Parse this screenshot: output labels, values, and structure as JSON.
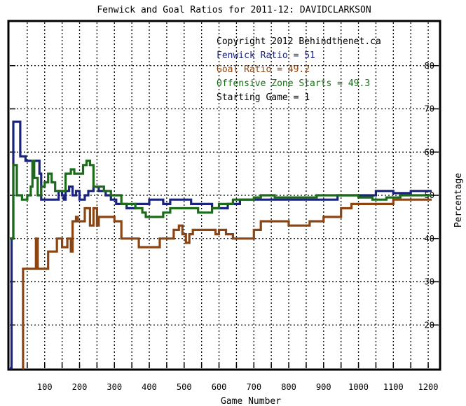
{
  "chart_data": {
    "type": "line",
    "title": "Fenwick and Goal Ratios for 2011-12: DAVIDCLARKSON",
    "xlabel": "Game Number",
    "ylabel": "Percentage",
    "xlim": [
      0,
      1230
    ],
    "ylim": [
      10,
      90
    ],
    "x_ticks": [
      100,
      200,
      300,
      400,
      500,
      600,
      700,
      800,
      900,
      1000,
      1100,
      1200
    ],
    "y_ticks": [
      20,
      30,
      40,
      50,
      60,
      70,
      80
    ],
    "grid": true,
    "annotations": [
      {
        "text": "Copyright 2012 Behindthenet.ca",
        "color": "#000000"
      },
      {
        "text": "Fenwick Ratio = 51",
        "color": "#1a237e"
      },
      {
        "text": "Goal Ratio = 49.2",
        "color": "#8b4513"
      },
      {
        "text": "Offensive Zone Starts = 49.3",
        "color": "#1b6b1b"
      },
      {
        "text": "Starting Game = 1",
        "color": "#000000"
      }
    ],
    "series": [
      {
        "name": "Fenwick Ratio",
        "color": "#1a237e",
        "points": [
          [
            0,
            10
          ],
          [
            5,
            40
          ],
          [
            10,
            67
          ],
          [
            30,
            67
          ],
          [
            30,
            59
          ],
          [
            45,
            58
          ],
          [
            75,
            58
          ],
          [
            85,
            55
          ],
          [
            90,
            49
          ],
          [
            130,
            49
          ],
          [
            140,
            51
          ],
          [
            150,
            50
          ],
          [
            155,
            49
          ],
          [
            160,
            51
          ],
          [
            170,
            52
          ],
          [
            180,
            50
          ],
          [
            190,
            51
          ],
          [
            200,
            49
          ],
          [
            215,
            50
          ],
          [
            225,
            51
          ],
          [
            240,
            52
          ],
          [
            255,
            51
          ],
          [
            275,
            50
          ],
          [
            290,
            49
          ],
          [
            305,
            48
          ],
          [
            320,
            48
          ],
          [
            335,
            47
          ],
          [
            360,
            48
          ],
          [
            385,
            48
          ],
          [
            400,
            49
          ],
          [
            440,
            48
          ],
          [
            460,
            49
          ],
          [
            490,
            49
          ],
          [
            520,
            48
          ],
          [
            550,
            48
          ],
          [
            580,
            47
          ],
          [
            600,
            47
          ],
          [
            625,
            48
          ],
          [
            660,
            49
          ],
          [
            700,
            49
          ],
          [
            740,
            49
          ],
          [
            780,
            49
          ],
          [
            820,
            49
          ],
          [
            860,
            49
          ],
          [
            900,
            49
          ],
          [
            940,
            50
          ],
          [
            980,
            50
          ],
          [
            1020,
            50
          ],
          [
            1050,
            51
          ],
          [
            1100,
            50.5
          ],
          [
            1150,
            51
          ],
          [
            1210,
            51
          ]
        ]
      },
      {
        "name": "Goal Ratio",
        "color": "#8b4513",
        "points": [
          [
            35,
            10
          ],
          [
            38,
            33
          ],
          [
            70,
            33
          ],
          [
            75,
            40
          ],
          [
            80,
            33
          ],
          [
            100,
            33
          ],
          [
            110,
            37
          ],
          [
            130,
            37
          ],
          [
            135,
            40
          ],
          [
            150,
            38
          ],
          [
            165,
            40
          ],
          [
            175,
            37
          ],
          [
            180,
            44
          ],
          [
            190,
            45
          ],
          [
            195,
            44
          ],
          [
            215,
            47
          ],
          [
            220,
            47
          ],
          [
            230,
            43
          ],
          [
            240,
            47
          ],
          [
            250,
            43
          ],
          [
            255,
            45
          ],
          [
            290,
            45
          ],
          [
            300,
            44
          ],
          [
            320,
            40
          ],
          [
            360,
            40
          ],
          [
            370,
            38
          ],
          [
            400,
            38
          ],
          [
            420,
            38
          ],
          [
            430,
            40
          ],
          [
            460,
            40
          ],
          [
            470,
            42
          ],
          [
            485,
            43
          ],
          [
            495,
            41
          ],
          [
            505,
            39
          ],
          [
            515,
            41
          ],
          [
            525,
            42
          ],
          [
            540,
            42
          ],
          [
            560,
            42
          ],
          [
            590,
            41
          ],
          [
            600,
            42
          ],
          [
            620,
            41
          ],
          [
            640,
            40
          ],
          [
            660,
            40
          ],
          [
            680,
            40
          ],
          [
            700,
            42
          ],
          [
            720,
            44
          ],
          [
            750,
            44
          ],
          [
            780,
            44
          ],
          [
            800,
            43
          ],
          [
            840,
            43
          ],
          [
            860,
            44
          ],
          [
            880,
            44
          ],
          [
            900,
            45
          ],
          [
            920,
            45
          ],
          [
            950,
            47
          ],
          [
            980,
            48
          ],
          [
            1020,
            48
          ],
          [
            1060,
            48
          ],
          [
            1100,
            49
          ],
          [
            1140,
            49
          ],
          [
            1180,
            49
          ],
          [
            1210,
            49
          ]
        ]
      },
      {
        "name": "Offensive Zone Starts",
        "color": "#1b6b1b",
        "points": [
          [
            0,
            40
          ],
          [
            5,
            40
          ],
          [
            10,
            57
          ],
          [
            15,
            57
          ],
          [
            20,
            50
          ],
          [
            30,
            50
          ],
          [
            35,
            49
          ],
          [
            50,
            50
          ],
          [
            60,
            52
          ],
          [
            65,
            58
          ],
          [
            70,
            54
          ],
          [
            80,
            50
          ],
          [
            90,
            52
          ],
          [
            100,
            53
          ],
          [
            110,
            55
          ],
          [
            120,
            53
          ],
          [
            130,
            51
          ],
          [
            150,
            51
          ],
          [
            160,
            55
          ],
          [
            175,
            56
          ],
          [
            185,
            55
          ],
          [
            190,
            55
          ],
          [
            200,
            55
          ],
          [
            210,
            57
          ],
          [
            220,
            58
          ],
          [
            230,
            57
          ],
          [
            240,
            52
          ],
          [
            250,
            52
          ],
          [
            270,
            51
          ],
          [
            290,
            50
          ],
          [
            300,
            50
          ],
          [
            320,
            48
          ],
          [
            340,
            48
          ],
          [
            360,
            47
          ],
          [
            380,
            46
          ],
          [
            390,
            45
          ],
          [
            400,
            45
          ],
          [
            420,
            45
          ],
          [
            440,
            46
          ],
          [
            460,
            47
          ],
          [
            480,
            47
          ],
          [
            500,
            47
          ],
          [
            520,
            47
          ],
          [
            540,
            46
          ],
          [
            560,
            46
          ],
          [
            580,
            47
          ],
          [
            600,
            48
          ],
          [
            620,
            48
          ],
          [
            640,
            49
          ],
          [
            680,
            49
          ],
          [
            700,
            49.5
          ],
          [
            720,
            50
          ],
          [
            760,
            49.5
          ],
          [
            800,
            49.5
          ],
          [
            840,
            49.5
          ],
          [
            880,
            50
          ],
          [
            920,
            50
          ],
          [
            960,
            50
          ],
          [
            1000,
            49.5
          ],
          [
            1040,
            49
          ],
          [
            1080,
            49.5
          ],
          [
            1120,
            50
          ],
          [
            1160,
            50
          ],
          [
            1210,
            50
          ]
        ]
      }
    ]
  }
}
